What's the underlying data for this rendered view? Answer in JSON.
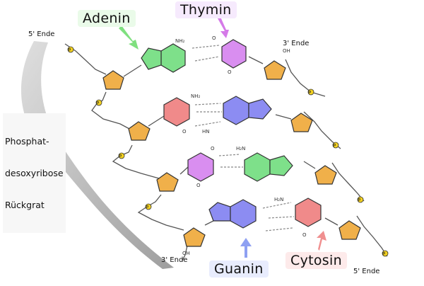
{
  "labels": {
    "adenine": "Adenin",
    "thymine": "Thymin",
    "guanine": "Guanin",
    "cytosine": "Cytosin",
    "backbone_line1": "Phosphat-",
    "backbone_line2": "desoxyribose",
    "backbone_line3": "Rückgrat",
    "end_5_top": "5' Ende",
    "end_3_top": "3' Ende",
    "end_3_bottom": "3' Ende",
    "end_5_bottom": "5' Ende"
  },
  "atoms": {
    "nh2": "NH₂",
    "o": "O",
    "hn": "HN",
    "hn2": "H₂N",
    "h2n": "H₂N",
    "oh": "OH",
    "p": "P"
  },
  "colors": {
    "adenine": "#7ee08a",
    "thymine": "#d98ef0",
    "guanine": "#8c8cf2",
    "cytosine": "#f08a8a",
    "sugar": "#f0b04a",
    "phosphate": "#f2d020",
    "adenine_label_bg": "#eafbe9",
    "thymine_label_bg": "#f6eafd",
    "guanine_label_bg": "#e8ecfd",
    "cytosine_label_bg": "#fdeaea",
    "adenine_arrow": "#7fe07f",
    "thymine_arrow": "#d57ae8",
    "guanine_arrow": "#8ea0f2",
    "cytosine_arrow": "#f08f8f"
  }
}
